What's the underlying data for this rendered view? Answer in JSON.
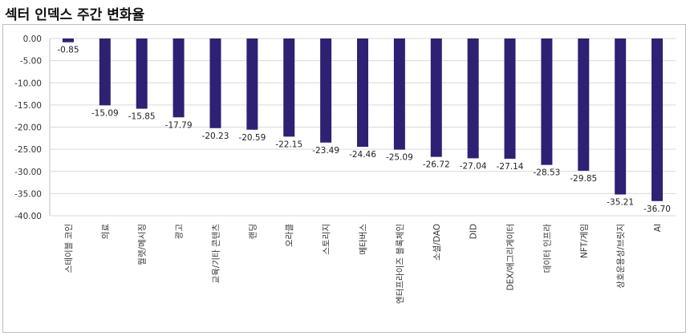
{
  "title": "섹터 인덱스 주간 변화율",
  "chart_data": {
    "type": "bar",
    "title": "섹터 인덱스 주간 변화율",
    "xlabel": "",
    "ylabel": "",
    "ylim": [
      -40,
      0
    ],
    "yticks": [
      "0.00",
      "-5.00",
      "-10.00",
      "-15.00",
      "-20.00",
      "-25.00",
      "-30.00",
      "-35.00",
      "-40.00"
    ],
    "grid": true,
    "bar_color": "#2e2173",
    "categories": [
      "스테이블 코인",
      "의료",
      "월렛/메시징",
      "광고",
      "교육/기타 콘텐츠",
      "랜딩",
      "오라클",
      "스토리지",
      "메타버스",
      "엔터프라이즈 블록체인",
      "소셜/DAO",
      "DID",
      "DEX/애그리게이터",
      "데이터 인프라",
      "NFT/게임",
      "상호운용성/브릿지",
      "AI"
    ],
    "values": [
      -0.85,
      -15.09,
      -15.85,
      -17.79,
      -20.23,
      -20.59,
      -22.15,
      -23.49,
      -24.46,
      -25.09,
      -26.72,
      -27.04,
      -27.14,
      -28.53,
      -29.85,
      -35.21,
      -36.7
    ],
    "value_labels": [
      "-0.85",
      "-15.09",
      "-15.85",
      "-17.79",
      "-20.23",
      "-20.59",
      "-22.15",
      "-23.49",
      "-24.46",
      "-25.09",
      "-26.72",
      "-27.04",
      "-27.14",
      "-28.53",
      "-29.85",
      "-35.21",
      "-36.70"
    ]
  }
}
